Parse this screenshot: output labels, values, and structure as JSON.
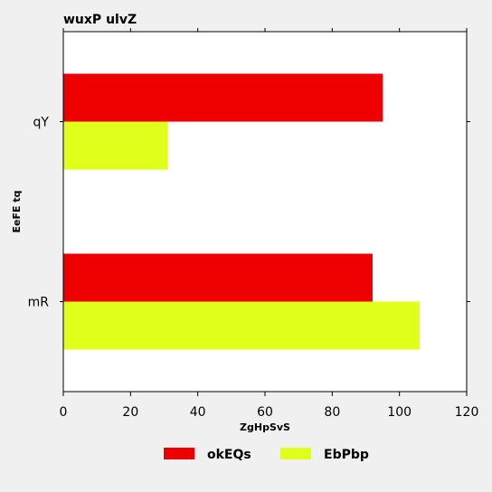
{
  "chart_data": {
    "type": "bar",
    "orientation": "horizontal",
    "title": "wuxP ulvZ",
    "xlabel": "ZgHpSvS",
    "ylabel": "EeFE  tq",
    "categories": [
      "qY",
      "mR"
    ],
    "series": [
      {
        "name": "okEQs",
        "values": [
          95,
          92
        ],
        "color": "#ee0000"
      },
      {
        "name": "EbPbp",
        "values": [
          31,
          106
        ],
        "color": "#e0ff1a"
      }
    ],
    "xlim": [
      0,
      120
    ],
    "xticks": [
      0,
      20,
      40,
      60,
      80,
      100,
      120
    ],
    "grid": false,
    "legend_position": "bottom"
  }
}
